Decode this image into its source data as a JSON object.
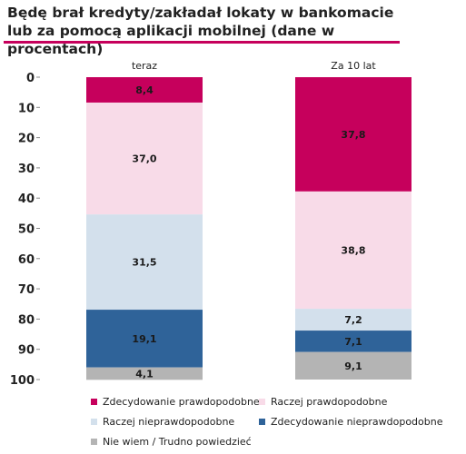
{
  "chart_data": {
    "type": "bar",
    "stacked": true,
    "orientation": "vertical",
    "title": "Będę brał kredyty/zakładał lokaty w bankomacie lub za pomocą aplikacji mobilnej (dane w procentach)",
    "categories": [
      "teraz",
      "Za 10 lat"
    ],
    "ylim": [
      0,
      100
    ],
    "y_inverted": true,
    "y_ticks": [
      "0",
      "10",
      "20",
      "30",
      "40",
      "50",
      "60",
      "70",
      "80",
      "90",
      "100"
    ],
    "grid": false,
    "legend_position": "bottom",
    "series": [
      {
        "name": "Zdecydowanie prawdopodobne",
        "color": "#c6005c",
        "values": [
          8.4,
          37.8
        ],
        "labels": [
          "8,4",
          "37,8"
        ]
      },
      {
        "name": "Raczej prawdopodobne",
        "color": "#f8dbe8",
        "values": [
          37.0,
          38.8
        ],
        "labels": [
          "37,0",
          "38,8"
        ]
      },
      {
        "name": "Raczej nieprawdopodobne",
        "color": "#d3e0ec",
        "values": [
          31.5,
          7.2
        ],
        "labels": [
          "31,5",
          "7,2"
        ]
      },
      {
        "name": "Zdecydowanie nieprawdopodobne",
        "color": "#2f6399",
        "values": [
          19.1,
          7.1
        ],
        "labels": [
          "19,1",
          "7,1"
        ]
      },
      {
        "name": "Nie wiem / Trudno powiedzieć",
        "color": "#b4b4b4",
        "values": [
          4.1,
          9.1
        ],
        "labels": [
          "4,1",
          "9,1"
        ]
      }
    ]
  },
  "accent_color": "#c6005c"
}
